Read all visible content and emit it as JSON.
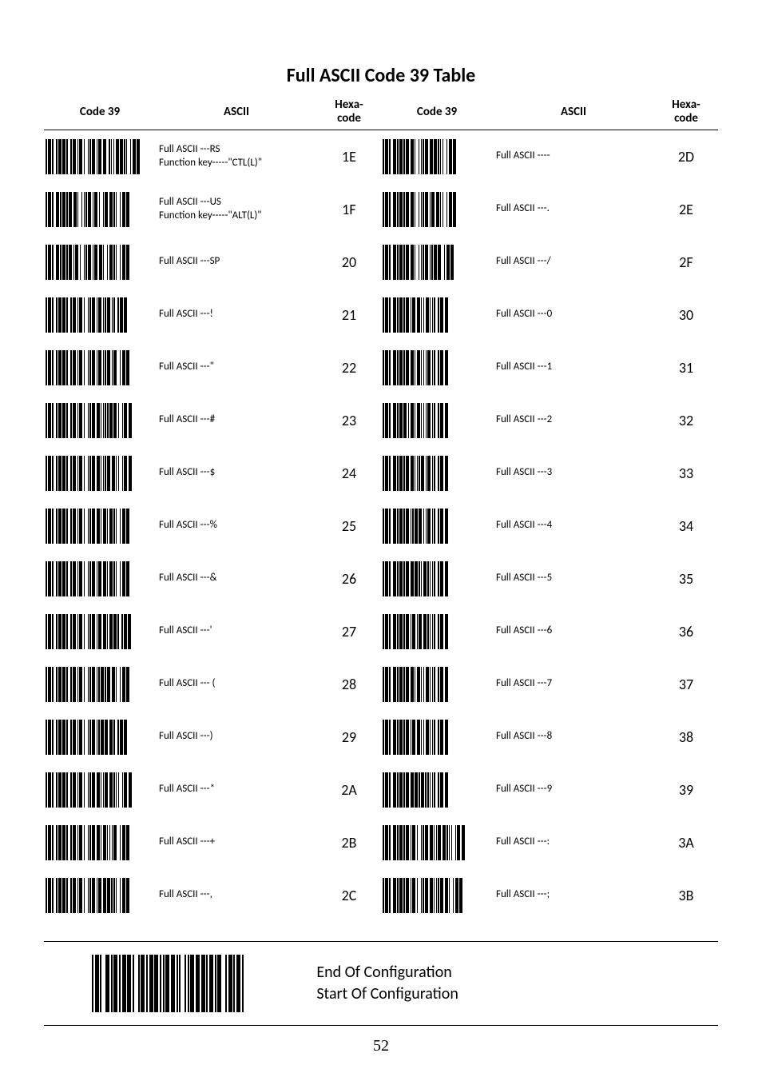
{
  "title": "Full ASCII Code 39 Table",
  "headers": {
    "code39": "Code 39",
    "ascii": "ASCII",
    "hexa_line1": "Hexa-",
    "hexa_line2": "code"
  },
  "left_rows": [
    {
      "ascii": "Full ASCII ---RS\nFunction key-----\"CTL(L)\"",
      "hex": "1E",
      "pattern": "1011010010110110100101101011010010101101011011001010101101101010010110110"
    },
    {
      "ascii": "Full ASCII ---US\nFunction key-----\"ALT(L)\"",
      "hex": "1F",
      "pattern": "10110100110101101011011010010101011010110100101101101010010110110"
    },
    {
      "ascii": "Full ASCII ---SP",
      "hex": "20",
      "pattern": "10110100110101101011010110100101011010110110100101101010010110110"
    },
    {
      "ascii": "Full ASCII ---!",
      "hex": "21",
      "pattern": "1011010010110110100101101011010010101101011010101101010010110110"
    },
    {
      "ascii": "Full ASCII ---\"",
      "hex": "22",
      "pattern": "10110100101101101001011010110100101011010110101011010110010110110"
    },
    {
      "ascii": "Full ASCII ---#",
      "hex": "23",
      "pattern": "1011010010110110100101101011010010101101101010101011011010010110110"
    },
    {
      "ascii": "Full ASCII ---$",
      "hex": "24",
      "pattern": "1011010010110110100101101011010010101101101010101101101010010110110"
    },
    {
      "ascii": "Full ASCII ---%",
      "hex": "25",
      "pattern": "10110100101101101001011010110100101011011010110101101010010110110"
    },
    {
      "ascii": "Full ASCII ---&",
      "hex": "26",
      "pattern": "10110100101101101001011010110100101011010110110101101010010110110"
    },
    {
      "ascii": "Full ASCII ---'",
      "hex": "27",
      "pattern": "101101001011011010010110101101001010110101101101011011010010110110"
    },
    {
      "ascii": "Full ASCII --- (",
      "hex": "28",
      "pattern": "10110100101101101001011010110100101011010101101011011010010110110"
    },
    {
      "ascii": "Full ASCII ---)",
      "hex": "29",
      "pattern": "101101001011011010010110101101001010110101011011011010010110110"
    },
    {
      "ascii": "Full ASCII ---*",
      "hex": "2A",
      "pattern": "1011010010110110100101101011010010101101101010110110101010010110110"
    },
    {
      "ascii": "Full ASCII ---+",
      "hex": "2B",
      "pattern": "10110100101101101001011010110100101011011010110101010110010110110"
    },
    {
      "ascii": "Full ASCII ---,",
      "hex": "2C",
      "pattern": "10110100101101101001011010110100101011010110110110101010010110110"
    }
  ],
  "right_rows": [
    {
      "ascii": "Full ASCII ----",
      "hex": "2D",
      "pattern": "101101001101011010110110100101010110110110101010010110110"
    },
    {
      "ascii": "Full ASCII ---.",
      "hex": "2E",
      "pattern": "101101001101011010110110100101010110101101101010010110110"
    },
    {
      "ascii": "Full ASCII ---/",
      "hex": "2F",
      "pattern": "1011010011010110101101101001010101101010110110010110110"
    },
    {
      "ascii": "Full ASCII ---0",
      "hex": "30",
      "pattern": "101101001101011010110101101101010110101010010110110"
    },
    {
      "ascii": "Full ASCII ---1",
      "hex": "31",
      "pattern": "101101001101011010110110101101010101101010010110110"
    },
    {
      "ascii": "Full ASCII ---2",
      "hex": "32",
      "pattern": "101101001101011011010110101101010101101010010110110"
    },
    {
      "ascii": "Full ASCII ---3",
      "hex": "33",
      "pattern": "101101001101011010110110101010110101101010010110110"
    },
    {
      "ascii": "Full ASCII ---4",
      "hex": "34",
      "pattern": "101101001101011010110101011011010101101010010110110"
    },
    {
      "ascii": "Full ASCII ---5",
      "hex": "35",
      "pattern": "101101001101011010110110110101011010101010010110110"
    },
    {
      "ascii": "Full ASCII ---6",
      "hex": "36",
      "pattern": "101101001101011010110101101011011010101010010110110"
    },
    {
      "ascii": "Full ASCII ---7",
      "hex": "37",
      "pattern": "101101001101011010110110101101010110101010010110110"
    },
    {
      "ascii": "Full ASCII ---8",
      "hex": "38",
      "pattern": "101101001101011010110101101101010110101010010110110"
    },
    {
      "ascii": "Full ASCII ---9",
      "hex": "39",
      "pattern": "101101001101011010110110110101101010101010010110110"
    },
    {
      "ascii": "Full ASCII ---:",
      "hex": "3A",
      "pattern": "1011010011010110101101011010010101101101010110110101010010110110"
    },
    {
      "ascii": "Full ASCII ---;",
      "hex": "3B",
      "pattern": "10110100110101101011010110100101011011010101011011010010110110"
    }
  ],
  "footer": {
    "line1": "End Of Configuration",
    "line2": "Start Of Configuration",
    "barcode_pattern": "1011010011010110101101101001011010110110101011011010100101011011011010110101100101101011010"
  },
  "page_number": "52",
  "barcode_style": {
    "narrow": 1.5,
    "wide": 4,
    "space_narrow": 1.3,
    "space_wide": 3.5
  },
  "footer_barcode_style": {
    "narrow": 2,
    "wide": 5,
    "space_narrow": 1.7,
    "space_wide": 4.5
  }
}
